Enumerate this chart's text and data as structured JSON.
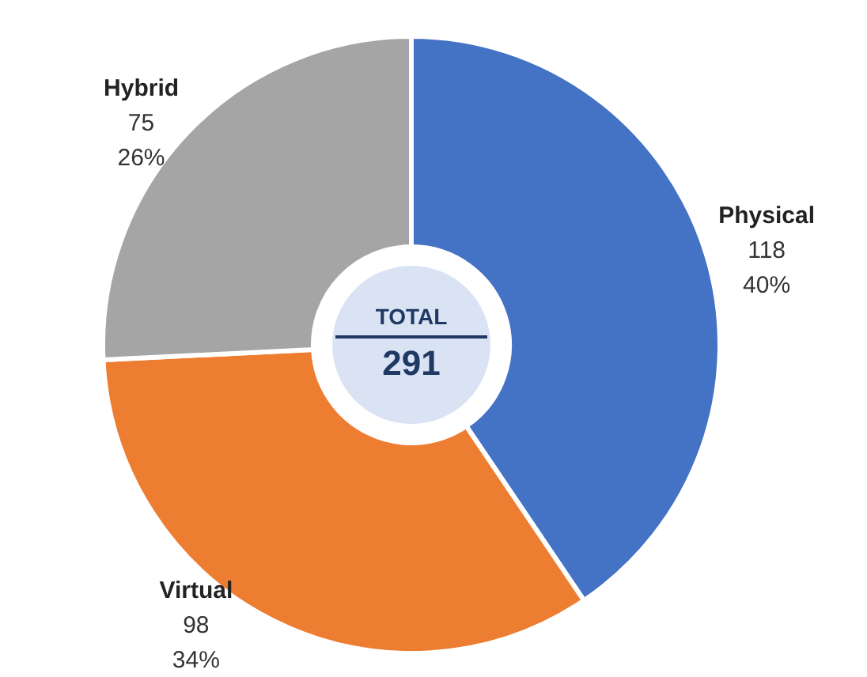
{
  "chart_data": {
    "type": "donut",
    "categories": [
      "Physical",
      "Virtual",
      "Hybrid"
    ],
    "values": [
      118,
      98,
      75
    ],
    "colors": [
      "#4472c4",
      "#ed7d31",
      "#a5a5a5"
    ],
    "value_labels": [
      "118\n40%",
      "98\n34%",
      "75\n26%"
    ],
    "annotations": [
      "TOTAL",
      "291"
    ],
    "legend": false
  }
}
